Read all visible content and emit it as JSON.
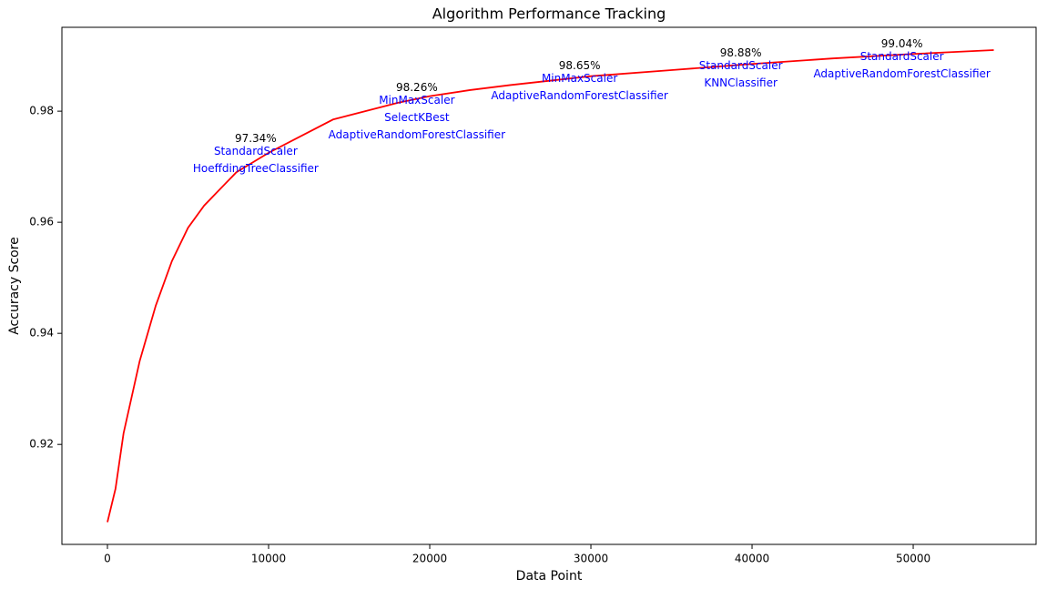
{
  "chart_data": {
    "type": "line",
    "title": "Algorithm Performance Tracking",
    "x_label": "Data Point",
    "y_label": "Accuracy Score",
    "x": [
      0,
      500,
      1000,
      2000,
      3000,
      4000,
      5000,
      6000,
      7000,
      8000,
      10000,
      12000,
      14000,
      16000,
      18000,
      20000,
      22500,
      25000,
      27500,
      30000,
      35000,
      40000,
      45000,
      50000,
      55000
    ],
    "series": [
      {
        "color": "#ff0000",
        "values": [
          0.906,
          0.912,
          0.922,
          0.935,
          0.945,
          0.953,
          0.959,
          0.963,
          0.966,
          0.969,
          0.9725,
          0.9755,
          0.9785,
          0.98,
          0.9815,
          0.9827,
          0.9838,
          0.9847,
          0.9855,
          0.9863,
          0.9874,
          0.9885,
          0.9895,
          0.9903,
          0.991
        ]
      }
    ],
    "xlim": [
      -2825,
      57625
    ],
    "ylim": [
      0.902,
      0.9951
    ],
    "xticks": [
      0,
      10000,
      20000,
      30000,
      40000,
      50000
    ],
    "yticks": [
      0.92,
      0.94,
      0.96,
      0.98
    ],
    "annotations": [
      {
        "x": 9200,
        "value": 0.9734,
        "label": "97.34%",
        "lines": [
          "StandardScaler",
          "HoeffdingTreeClassifier"
        ]
      },
      {
        "x": 19200,
        "value": 0.9826,
        "label": "98.26%",
        "lines": [
          "MinMaxScaler",
          "SelectKBest",
          "AdaptiveRandomForestClassifier"
        ]
      },
      {
        "x": 29300,
        "value": 0.9865,
        "label": "98.65%",
        "lines": [
          "MinMaxScaler",
          "AdaptiveRandomForestClassifier"
        ]
      },
      {
        "x": 39300,
        "value": 0.9888,
        "label": "98.88%",
        "lines": [
          "StandardScaler",
          "KNNClassifier"
        ]
      },
      {
        "x": 49300,
        "value": 0.9904,
        "label": "99.04%",
        "lines": [
          "StandardScaler",
          "AdaptiveRandomForestClassifier"
        ]
      }
    ]
  }
}
